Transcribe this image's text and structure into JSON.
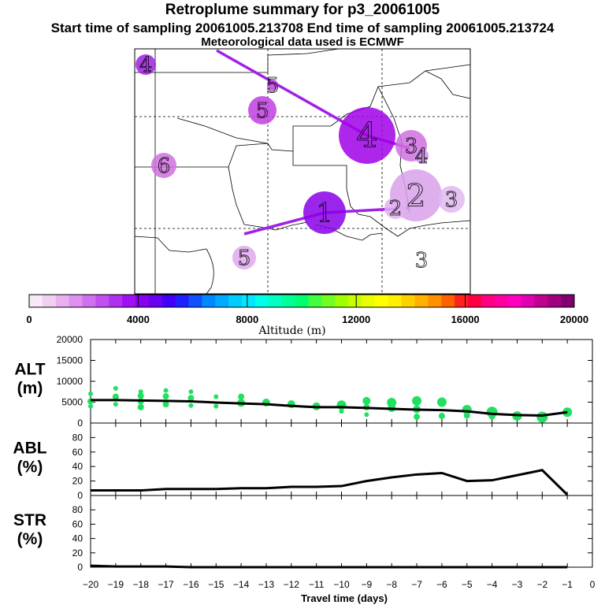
{
  "header": {
    "title": "Retroplume summary for p3_20061005",
    "subtitle": "Start time of sampling 20061005.213708      End time of sampling 20061005.213724",
    "met": "Meteorological data used is ECMWF"
  },
  "chart_data": [
    {
      "type": "map",
      "name": "retroplume-map",
      "colorbar": {
        "label": "Altitude (m)",
        "range": [
          0,
          20000
        ],
        "tick_labels": [
          "0",
          "4000",
          "8000",
          "12000",
          "16000",
          "20000"
        ],
        "colors": [
          "#f8e8f8",
          "#f0d0f0",
          "#e8b0f0",
          "#e090f0",
          "#d070f0",
          "#c050f0",
          "#b030f0",
          "#a010f0",
          "#8800f0",
          "#6a00f0",
          "#4000f8",
          "#2020ff",
          "#1050ff",
          "#0088ff",
          "#00aaff",
          "#00ccff",
          "#00e8ff",
          "#00ffe8",
          "#00ffc0",
          "#00ff98",
          "#00ff70",
          "#40ff40",
          "#70ff20",
          "#a0ff00",
          "#c8ff00",
          "#e8ff00",
          "#ffff00",
          "#fff000",
          "#ffd000",
          "#ffb000",
          "#ff9000",
          "#ff6000",
          "#ff2020",
          "#ff0040",
          "#ff0080",
          "#ff00a0",
          "#ff00c0",
          "#e000b0",
          "#c00090",
          "#a00080",
          "#800070"
        ]
      },
      "markers": [
        {
          "label": "4",
          "color": "#a020e0"
        },
        {
          "label": "5",
          "color": "#c040e0"
        },
        {
          "label": "5",
          "color": "#c040e0"
        },
        {
          "label": "6",
          "color": "#d070e0"
        },
        {
          "label": "4",
          "color": "#a000e8"
        },
        {
          "label": "3",
          "color": "#d070e0"
        },
        {
          "label": "4",
          "color": "#d090e8"
        },
        {
          "label": "2",
          "color": "#d8a0ea"
        },
        {
          "label": "3",
          "color": "#e0b8f0"
        },
        {
          "label": "1",
          "color": "#8a00e8"
        },
        {
          "label": "5",
          "color": "#e0a8ee"
        },
        {
          "label": "3",
          "color": "#ffffff"
        },
        {
          "label": "2",
          "color": "#e0b0f0"
        }
      ]
    },
    {
      "type": "line",
      "name": "ALT",
      "ylabel_lines": [
        "ALT",
        "(m)"
      ],
      "ylim": [
        0,
        20000
      ],
      "yticks": [
        0,
        5000,
        10000,
        15000,
        20000
      ],
      "x": [
        -20,
        -19,
        -18,
        -17,
        -16,
        -15,
        -14,
        -13,
        -12,
        -11,
        -10,
        -9,
        -8,
        -7,
        -6,
        -5,
        -4,
        -3,
        -2,
        -1
      ],
      "values": [
        5500,
        5500,
        5400,
        5300,
        5200,
        4900,
        4700,
        4500,
        4100,
        3800,
        3800,
        3600,
        3400,
        3200,
        3100,
        2800,
        2200,
        1900,
        1800,
        2600
      ],
      "scatter_color": "#20e060",
      "scatter": [
        [
          -20,
          5200,
          4
        ],
        [
          -20,
          7000,
          3
        ],
        [
          -20,
          4000,
          3
        ],
        [
          -19,
          8300,
          3
        ],
        [
          -19,
          6300,
          4
        ],
        [
          -19,
          4500,
          3
        ],
        [
          -18,
          7500,
          3
        ],
        [
          -18,
          6500,
          4
        ],
        [
          -18,
          5200,
          4
        ],
        [
          -18,
          3800,
          4
        ],
        [
          -17,
          7800,
          3
        ],
        [
          -17,
          6400,
          4
        ],
        [
          -17,
          4500,
          4
        ],
        [
          -16,
          7500,
          3
        ],
        [
          -16,
          6000,
          4
        ],
        [
          -16,
          4200,
          3
        ],
        [
          -15,
          6300,
          3
        ],
        [
          -15,
          4000,
          3
        ],
        [
          -14,
          6300,
          4
        ],
        [
          -14,
          4800,
          5
        ],
        [
          -13,
          4900,
          5
        ],
        [
          -12,
          4500,
          5
        ],
        [
          -11,
          4000,
          5
        ],
        [
          -10,
          4300,
          6
        ],
        [
          -10,
          2800,
          3
        ],
        [
          -9,
          5300,
          5
        ],
        [
          -9,
          3800,
          4
        ],
        [
          -9,
          2000,
          3
        ],
        [
          -8,
          4900,
          6
        ],
        [
          -8,
          3600,
          5
        ],
        [
          -7,
          5300,
          6
        ],
        [
          -7,
          3300,
          5
        ],
        [
          -7,
          1500,
          4
        ],
        [
          -6,
          5000,
          6
        ],
        [
          -6,
          1700,
          4
        ],
        [
          -5,
          3200,
          6
        ],
        [
          -5,
          1800,
          4
        ],
        [
          -4,
          2600,
          7
        ],
        [
          -4,
          1600,
          4
        ],
        [
          -3,
          1700,
          6
        ],
        [
          -2,
          1400,
          7
        ],
        [
          -1,
          2600,
          6
        ]
      ]
    },
    {
      "type": "line",
      "name": "ABL",
      "ylabel_lines": [
        "ABL",
        "(%)"
      ],
      "ylim": [
        0,
        100
      ],
      "yticks": [
        0,
        20,
        40,
        60,
        80
      ],
      "x": [
        -20,
        -19,
        -18,
        -17,
        -16,
        -15,
        -14,
        -13,
        -12,
        -11,
        -10,
        -9,
        -8,
        -7,
        -6,
        -5,
        -4,
        -3,
        -2,
        -1
      ],
      "values": [
        7,
        7,
        7,
        9,
        9,
        9,
        10,
        10,
        12,
        12,
        13,
        20,
        25,
        29,
        31,
        20,
        21,
        28,
        35,
        1
      ]
    },
    {
      "type": "line",
      "name": "STR",
      "ylabel_lines": [
        "STR",
        "(%)"
      ],
      "ylim": [
        0,
        100
      ],
      "yticks": [
        0,
        20,
        40,
        60,
        80
      ],
      "x": [
        -20,
        -19,
        -18,
        -17,
        -16,
        -15,
        -14,
        -13,
        -12,
        -11,
        -10,
        -9,
        -8,
        -7,
        -6,
        -5,
        -4,
        -3,
        -2,
        -1
      ],
      "values": [
        2,
        1,
        1,
        1,
        0,
        0,
        0,
        0,
        0,
        0,
        0,
        0,
        0,
        0,
        0,
        0,
        0,
        0,
        0,
        0
      ]
    }
  ],
  "x_axis": {
    "label": "Travel time (days)",
    "ticks": [
      -20,
      -19,
      -18,
      -17,
      -16,
      -15,
      -14,
      -13,
      -12,
      -11,
      -10,
      -9,
      -8,
      -7,
      -6,
      -5,
      -4,
      -3,
      -2,
      -1,
      0
    ],
    "tick_labels": [
      "−20",
      "−19",
      "−18",
      "−17",
      "−16",
      "−15",
      "−14",
      "−13",
      "−12",
      "−11",
      "−10",
      "−9",
      "−8",
      "−7",
      "−6",
      "−5",
      "−4",
      "−3",
      "−2",
      "−1",
      "0"
    ],
    "xlim": [
      -20,
      0
    ]
  }
}
